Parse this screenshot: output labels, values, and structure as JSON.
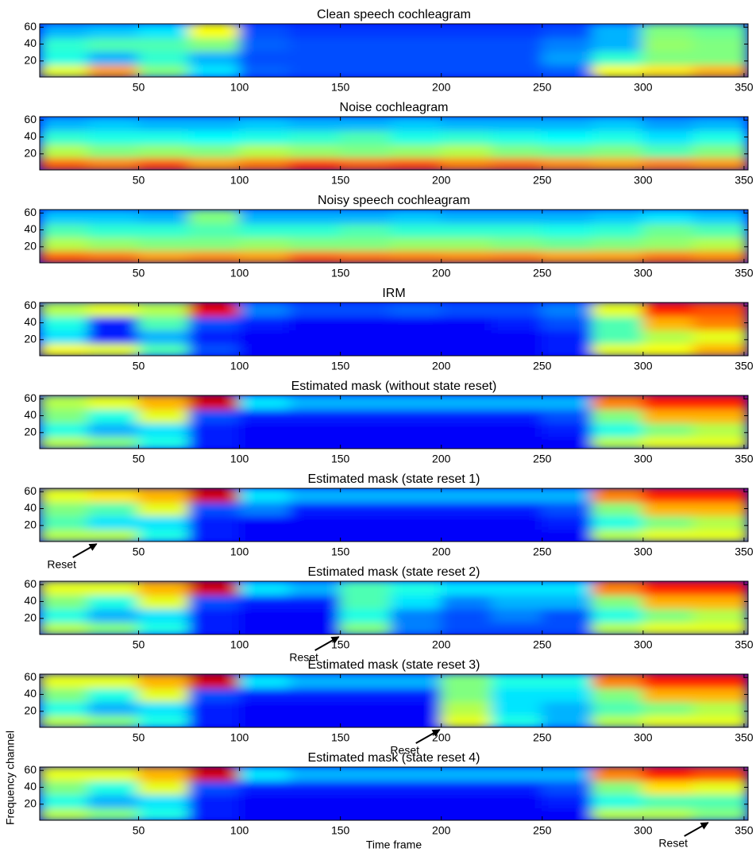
{
  "chart_data": [
    {
      "type": "heatmap",
      "title": "Clean speech cochleagram",
      "colormap": "jet",
      "xbins": [
        1,
        25,
        50,
        75,
        100,
        125,
        150,
        175,
        200,
        225,
        250,
        275,
        300,
        325,
        352
      ],
      "ybins": [
        1,
        16,
        32,
        48,
        64
      ],
      "z": [
        [
          0.6,
          0.72,
          0.5,
          0.35,
          0.22,
          0.2,
          0.2,
          0.2,
          0.2,
          0.2,
          0.22,
          0.62,
          0.65,
          0.7
        ],
        [
          0.4,
          0.3,
          0.42,
          0.3,
          0.2,
          0.2,
          0.2,
          0.2,
          0.2,
          0.2,
          0.28,
          0.42,
          0.5,
          0.5
        ],
        [
          0.42,
          0.45,
          0.45,
          0.5,
          0.22,
          0.2,
          0.2,
          0.2,
          0.2,
          0.2,
          0.25,
          0.3,
          0.52,
          0.5
        ],
        [
          0.3,
          0.32,
          0.35,
          0.62,
          0.2,
          0.18,
          0.18,
          0.18,
          0.18,
          0.18,
          0.2,
          0.3,
          0.5,
          0.48
        ]
      ],
      "xlim": [
        1,
        352
      ],
      "ylim": [
        1,
        64
      ],
      "xticks": [
        50,
        100,
        150,
        200,
        250,
        300,
        350
      ],
      "yticks": [
        20,
        40,
        60
      ]
    },
    {
      "type": "heatmap",
      "title": "Noise cochleagram",
      "colormap": "jet",
      "xbins": [
        1,
        25,
        50,
        75,
        100,
        125,
        150,
        175,
        200,
        225,
        250,
        275,
        300,
        325,
        352
      ],
      "ybins": [
        1,
        16,
        32,
        48,
        64
      ],
      "z": [
        [
          0.78,
          0.75,
          0.8,
          0.72,
          0.76,
          0.82,
          0.78,
          0.8,
          0.75,
          0.77,
          0.74,
          0.72,
          0.75,
          0.73
        ],
        [
          0.55,
          0.5,
          0.52,
          0.5,
          0.55,
          0.52,
          0.5,
          0.52,
          0.55,
          0.5,
          0.48,
          0.5,
          0.45,
          0.5
        ],
        [
          0.42,
          0.4,
          0.4,
          0.38,
          0.4,
          0.42,
          0.45,
          0.4,
          0.42,
          0.4,
          0.38,
          0.4,
          0.35,
          0.4
        ],
        [
          0.3,
          0.32,
          0.3,
          0.3,
          0.32,
          0.3,
          0.3,
          0.32,
          0.3,
          0.3,
          0.3,
          0.32,
          0.28,
          0.3
        ]
      ],
      "xlim": [
        1,
        352
      ],
      "ylim": [
        1,
        64
      ],
      "xticks": [
        50,
        100,
        150,
        200,
        250,
        300,
        350
      ],
      "yticks": [
        20,
        40,
        60
      ]
    },
    {
      "type": "heatmap",
      "title": "Noisy speech cochleagram",
      "colormap": "jet",
      "xbins": [
        1,
        25,
        50,
        75,
        100,
        125,
        150,
        175,
        200,
        225,
        250,
        275,
        300,
        325,
        352
      ],
      "ybins": [
        1,
        16,
        32,
        48,
        64
      ],
      "z": [
        [
          0.78,
          0.76,
          0.72,
          0.74,
          0.72,
          0.78,
          0.76,
          0.75,
          0.74,
          0.75,
          0.72,
          0.72,
          0.76,
          0.74
        ],
        [
          0.55,
          0.52,
          0.5,
          0.5,
          0.52,
          0.5,
          0.5,
          0.52,
          0.52,
          0.5,
          0.48,
          0.5,
          0.52,
          0.55
        ],
        [
          0.45,
          0.42,
          0.42,
          0.45,
          0.42,
          0.42,
          0.45,
          0.42,
          0.42,
          0.42,
          0.4,
          0.42,
          0.48,
          0.45
        ],
        [
          0.32,
          0.32,
          0.3,
          0.5,
          0.3,
          0.3,
          0.3,
          0.32,
          0.3,
          0.3,
          0.3,
          0.32,
          0.35,
          0.32
        ]
      ],
      "xlim": [
        1,
        352
      ],
      "ylim": [
        1,
        64
      ],
      "xticks": [
        50,
        100,
        150,
        200,
        250,
        300,
        350
      ],
      "yticks": [
        20,
        40,
        60
      ]
    },
    {
      "type": "heatmap",
      "title": "IRM",
      "colormap": "jet",
      "xbins": [
        1,
        25,
        50,
        75,
        100,
        125,
        150,
        175,
        200,
        225,
        250,
        275,
        300,
        325,
        352
      ],
      "ybins": [
        1,
        16,
        32,
        48,
        64
      ],
      "z": [
        [
          0.62,
          0.6,
          0.45,
          0.2,
          0.12,
          0.12,
          0.12,
          0.12,
          0.12,
          0.12,
          0.15,
          0.6,
          0.62,
          0.7
        ],
        [
          0.35,
          0.15,
          0.3,
          0.15,
          0.12,
          0.12,
          0.12,
          0.12,
          0.12,
          0.12,
          0.15,
          0.45,
          0.55,
          0.6
        ],
        [
          0.4,
          0.15,
          0.45,
          0.2,
          0.15,
          0.12,
          0.12,
          0.12,
          0.12,
          0.15,
          0.2,
          0.45,
          0.7,
          0.75
        ],
        [
          0.55,
          0.6,
          0.55,
          0.9,
          0.25,
          0.2,
          0.2,
          0.22,
          0.2,
          0.2,
          0.25,
          0.6,
          0.85,
          0.8
        ]
      ],
      "xlim": [
        1,
        352
      ],
      "ylim": [
        1,
        64
      ],
      "xticks": [
        50,
        100,
        150,
        200,
        250,
        300,
        350
      ],
      "yticks": [
        20,
        40,
        60
      ]
    },
    {
      "type": "heatmap",
      "title": "Estimated mask (without state reset)",
      "colormap": "jet",
      "xbins": [
        1,
        25,
        50,
        75,
        100,
        125,
        150,
        175,
        200,
        225,
        250,
        275,
        300,
        325,
        352
      ],
      "ybins": [
        1,
        16,
        32,
        48,
        64
      ],
      "z": [
        [
          0.55,
          0.5,
          0.4,
          0.15,
          0.12,
          0.12,
          0.12,
          0.12,
          0.12,
          0.12,
          0.12,
          0.55,
          0.6,
          0.6
        ],
        [
          0.4,
          0.3,
          0.35,
          0.15,
          0.12,
          0.12,
          0.12,
          0.12,
          0.12,
          0.12,
          0.15,
          0.4,
          0.5,
          0.55
        ],
        [
          0.5,
          0.4,
          0.6,
          0.2,
          0.15,
          0.15,
          0.15,
          0.15,
          0.15,
          0.15,
          0.2,
          0.5,
          0.7,
          0.7
        ],
        [
          0.55,
          0.6,
          0.7,
          0.92,
          0.35,
          0.3,
          0.3,
          0.3,
          0.3,
          0.3,
          0.3,
          0.75,
          0.85,
          0.85
        ]
      ],
      "xlim": [
        1,
        352
      ],
      "ylim": [
        1,
        64
      ],
      "xticks": [
        50,
        100,
        150,
        200,
        250,
        300,
        350
      ],
      "yticks": [
        20,
        40,
        60
      ]
    },
    {
      "type": "heatmap",
      "title": "Estimated mask (state reset 1)",
      "colormap": "jet",
      "annotation": {
        "text": "Reset",
        "x": 30
      },
      "xbins": [
        1,
        25,
        50,
        75,
        100,
        125,
        150,
        175,
        200,
        225,
        250,
        275,
        300,
        325,
        352
      ],
      "ybins": [
        1,
        16,
        32,
        48,
        64
      ],
      "z": [
        [
          0.55,
          0.55,
          0.4,
          0.15,
          0.12,
          0.12,
          0.12,
          0.12,
          0.12,
          0.12,
          0.12,
          0.55,
          0.6,
          0.6
        ],
        [
          0.45,
          0.35,
          0.35,
          0.15,
          0.12,
          0.12,
          0.12,
          0.12,
          0.12,
          0.12,
          0.15,
          0.4,
          0.5,
          0.55
        ],
        [
          0.5,
          0.45,
          0.6,
          0.2,
          0.25,
          0.15,
          0.15,
          0.15,
          0.15,
          0.15,
          0.2,
          0.5,
          0.7,
          0.7
        ],
        [
          0.6,
          0.65,
          0.7,
          0.92,
          0.35,
          0.3,
          0.3,
          0.3,
          0.3,
          0.3,
          0.3,
          0.75,
          0.85,
          0.85
        ]
      ],
      "xlim": [
        1,
        352
      ],
      "ylim": [
        1,
        64
      ],
      "xticks": [
        50,
        100,
        150,
        200,
        250,
        300,
        350
      ],
      "yticks": [
        20,
        40,
        60
      ]
    },
    {
      "type": "heatmap",
      "title": "Estimated mask (state reset 2)",
      "colormap": "jet",
      "annotation": {
        "text": "Reset",
        "x": 150
      },
      "xbins": [
        1,
        25,
        50,
        75,
        100,
        125,
        150,
        175,
        200,
        225,
        250,
        275,
        300,
        325,
        352
      ],
      "ybins": [
        1,
        16,
        32,
        48,
        64
      ],
      "z": [
        [
          0.55,
          0.5,
          0.4,
          0.15,
          0.12,
          0.12,
          0.5,
          0.25,
          0.2,
          0.2,
          0.2,
          0.55,
          0.6,
          0.6
        ],
        [
          0.4,
          0.3,
          0.35,
          0.15,
          0.12,
          0.12,
          0.4,
          0.25,
          0.2,
          0.25,
          0.2,
          0.4,
          0.5,
          0.55
        ],
        [
          0.5,
          0.4,
          0.6,
          0.2,
          0.15,
          0.15,
          0.45,
          0.35,
          0.25,
          0.3,
          0.3,
          0.5,
          0.7,
          0.7
        ],
        [
          0.6,
          0.6,
          0.7,
          0.92,
          0.35,
          0.3,
          0.45,
          0.4,
          0.35,
          0.35,
          0.35,
          0.75,
          0.85,
          0.85
        ]
      ],
      "xlim": [
        1,
        352
      ],
      "ylim": [
        1,
        64
      ],
      "xticks": [
        50,
        100,
        150,
        200,
        250,
        300,
        350
      ],
      "yticks": [
        20,
        40,
        60
      ]
    },
    {
      "type": "heatmap",
      "title": "Estimated mask (state reset 3)",
      "colormap": "jet",
      "annotation": {
        "text": "Reset",
        "x": 200
      },
      "xbins": [
        1,
        25,
        50,
        75,
        100,
        125,
        150,
        175,
        200,
        225,
        250,
        275,
        300,
        325,
        352
      ],
      "ybins": [
        1,
        16,
        32,
        48,
        64
      ],
      "z": [
        [
          0.55,
          0.5,
          0.4,
          0.15,
          0.12,
          0.12,
          0.12,
          0.12,
          0.6,
          0.4,
          0.3,
          0.55,
          0.6,
          0.6
        ],
        [
          0.4,
          0.3,
          0.35,
          0.15,
          0.12,
          0.12,
          0.12,
          0.12,
          0.55,
          0.35,
          0.3,
          0.45,
          0.5,
          0.55
        ],
        [
          0.5,
          0.4,
          0.6,
          0.2,
          0.15,
          0.15,
          0.15,
          0.15,
          0.5,
          0.35,
          0.35,
          0.5,
          0.7,
          0.7
        ],
        [
          0.6,
          0.6,
          0.7,
          0.92,
          0.35,
          0.3,
          0.3,
          0.3,
          0.5,
          0.4,
          0.4,
          0.75,
          0.85,
          0.85
        ]
      ],
      "xlim": [
        1,
        352
      ],
      "ylim": [
        1,
        64
      ],
      "xticks": [
        50,
        100,
        150,
        200,
        250,
        300,
        350
      ],
      "yticks": [
        20,
        40,
        60
      ]
    },
    {
      "type": "heatmap",
      "title": "Estimated mask (state reset 4)",
      "colormap": "jet",
      "annotation": {
        "text": "Reset",
        "x": 333
      },
      "xlabel": "Time frame",
      "ylabel": "Frequency channel",
      "xbins": [
        1,
        25,
        50,
        75,
        100,
        125,
        150,
        175,
        200,
        225,
        250,
        275,
        300,
        325,
        352
      ],
      "ybins": [
        1,
        16,
        32,
        48,
        64
      ],
      "z": [
        [
          0.55,
          0.5,
          0.4,
          0.15,
          0.12,
          0.12,
          0.12,
          0.12,
          0.12,
          0.12,
          0.12,
          0.55,
          0.55,
          0.5
        ],
        [
          0.4,
          0.3,
          0.35,
          0.15,
          0.12,
          0.12,
          0.12,
          0.12,
          0.12,
          0.12,
          0.15,
          0.4,
          0.45,
          0.45
        ],
        [
          0.5,
          0.4,
          0.6,
          0.2,
          0.15,
          0.15,
          0.15,
          0.15,
          0.15,
          0.15,
          0.2,
          0.5,
          0.65,
          0.6
        ],
        [
          0.6,
          0.6,
          0.7,
          0.92,
          0.35,
          0.3,
          0.3,
          0.3,
          0.3,
          0.3,
          0.3,
          0.75,
          0.85,
          0.8
        ]
      ],
      "xlim": [
        1,
        352
      ],
      "ylim": [
        1,
        64
      ],
      "xticks": [
        50,
        100,
        150,
        200,
        250,
        300,
        350
      ],
      "yticks": [
        20,
        40,
        60
      ]
    }
  ]
}
